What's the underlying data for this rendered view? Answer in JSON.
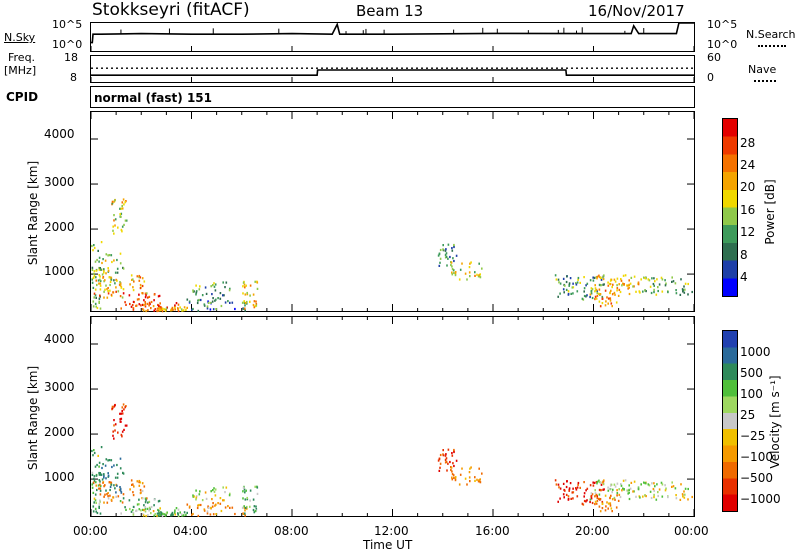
{
  "header": {
    "station": "Stokkseyri (fitACF)",
    "beam": "Beam 13",
    "date": "16/Nov/2017"
  },
  "noise_panel": {
    "left_label": "N.Sky",
    "right_label": "N.Search",
    "left_ticks": [
      "10^5",
      "10^0"
    ],
    "right_ticks": [
      "10^5",
      "10^0"
    ]
  },
  "freq_panel": {
    "left_label_line1": "Freq.",
    "left_label_line2": "[MHz]",
    "left_ticks": [
      "18",
      "8"
    ],
    "right_ticks": [
      "60",
      "0"
    ],
    "right_label": "Nave"
  },
  "cpid_panel": {
    "label": "CPID",
    "value": "normal (fast) 151"
  },
  "x_axis": {
    "ticks": [
      "00:00",
      "04:00",
      "08:00",
      "12:00",
      "16:00",
      "20:00",
      "00:00"
    ],
    "label": "Time UT"
  },
  "power_panel": {
    "ylabel": "Slant Range [km]",
    "yticks": [
      "4000",
      "3000",
      "2000",
      "1000"
    ],
    "colorbar_label": "Power [dB]",
    "colorbar_ticks": [
      "28",
      "24",
      "20",
      "16",
      "12",
      "8",
      "4"
    ],
    "colors": [
      "#0000ff",
      "#1e3fa8",
      "#2e6e4f",
      "#3d9a5a",
      "#8fc94a",
      "#f0d800",
      "#f5a400",
      "#f57200",
      "#ef3a00",
      "#e30000"
    ]
  },
  "velocity_panel": {
    "ylabel": "Slant Range [km]",
    "yticks": [
      "4000",
      "3000",
      "2000",
      "1000"
    ],
    "colorbar_label": "Velocity [m s⁻¹]",
    "colorbar_ticks": [
      "1000",
      "500",
      "100",
      "25",
      "−25",
      "−100",
      "−500",
      "−1000"
    ],
    "colors": [
      "#2040b0",
      "#2a6a9a",
      "#2e8a5a",
      "#4fbf3a",
      "#9ed860",
      "#c8c8c8",
      "#f0c000",
      "#f59a00",
      "#f06a00",
      "#e83000",
      "#e00000"
    ]
  },
  "chart_data": {
    "type": "heatmap",
    "x_unit": "hours UT",
    "xlim": [
      0,
      24
    ],
    "ylim": [
      180,
      4600
    ],
    "patches": [
      {
        "t0": 0.0,
        "t1": 0.4,
        "r0": 200,
        "r1": 1800,
        "p": 12,
        "v": 100
      },
      {
        "t0": 0.0,
        "t1": 2.2,
        "r0": 500,
        "r1": 1000,
        "p": 20,
        "v": -100
      },
      {
        "t0": 0.3,
        "t1": 1.3,
        "r0": 700,
        "r1": 1500,
        "p": 14,
        "v": 500
      },
      {
        "t0": 0.8,
        "t1": 1.4,
        "r0": 1900,
        "r1": 2700,
        "p": 16,
        "v": -500
      },
      {
        "t0": 1.0,
        "t1": 2.8,
        "r0": 250,
        "r1": 600,
        "p": 26,
        "v": 100
      },
      {
        "t0": 1.5,
        "t1": 3.5,
        "r0": 200,
        "r1": 400,
        "p": 24,
        "v": 25
      },
      {
        "t0": 2.6,
        "t1": 3.8,
        "r0": 200,
        "r1": 300,
        "p": 18,
        "v": 100
      },
      {
        "t0": 3.8,
        "t1": 6.2,
        "r0": 200,
        "r1": 500,
        "p": 8,
        "v": -100
      },
      {
        "t0": 4.0,
        "t1": 5.6,
        "r0": 550,
        "r1": 850,
        "p": 10,
        "v": 25
      },
      {
        "t0": 6.0,
        "t1": 6.6,
        "r0": 250,
        "r1": 900,
        "p": 18,
        "v": 100
      },
      {
        "t0": 13.8,
        "t1": 14.6,
        "r0": 1200,
        "r1": 1700,
        "p": 8,
        "v": -500
      },
      {
        "t0": 14.3,
        "t1": 15.6,
        "r0": 900,
        "r1": 1300,
        "p": 16,
        "v": -100
      },
      {
        "t0": 18.4,
        "t1": 20.4,
        "r0": 450,
        "r1": 1000,
        "p": 10,
        "v": -500
      },
      {
        "t0": 19.8,
        "t1": 21.8,
        "r0": 550,
        "r1": 1000,
        "p": 18,
        "v": 25
      },
      {
        "t0": 21.8,
        "t1": 23.9,
        "r0": 550,
        "r1": 950,
        "p": 12,
        "v": 25
      },
      {
        "t0": 20.0,
        "t1": 21.0,
        "r0": 300,
        "r1": 700,
        "p": 22,
        "v": -100
      }
    ],
    "noise_sky": [
      [
        0.0,
        0.3
      ],
      [
        0.05,
        0.3
      ],
      [
        0.08,
        0.6
      ],
      [
        0.4,
        0.6
      ],
      [
        2.0,
        0.62
      ],
      [
        4.0,
        0.6
      ],
      [
        6.0,
        0.6
      ],
      [
        8.0,
        0.62
      ],
      [
        9.6,
        0.6
      ],
      [
        9.8,
        0.95
      ],
      [
        9.9,
        0.6
      ],
      [
        12.0,
        0.6
      ],
      [
        16.0,
        0.63
      ],
      [
        19.6,
        0.62
      ],
      [
        21.5,
        0.62
      ],
      [
        21.6,
        0.9
      ],
      [
        21.8,
        0.62
      ],
      [
        23.3,
        0.62
      ],
      [
        23.4,
        1.0
      ],
      [
        24.0,
        1.0
      ]
    ],
    "freq_MHz": [
      [
        0,
        10.6
      ],
      [
        9.0,
        10.6
      ],
      [
        9.02,
        12.6
      ],
      [
        18.9,
        12.6
      ],
      [
        18.92,
        10.6
      ],
      [
        24,
        10.6
      ]
    ],
    "nave_dotted": [
      [
        0,
        13.3
      ],
      [
        24,
        13.3
      ]
    ]
  }
}
